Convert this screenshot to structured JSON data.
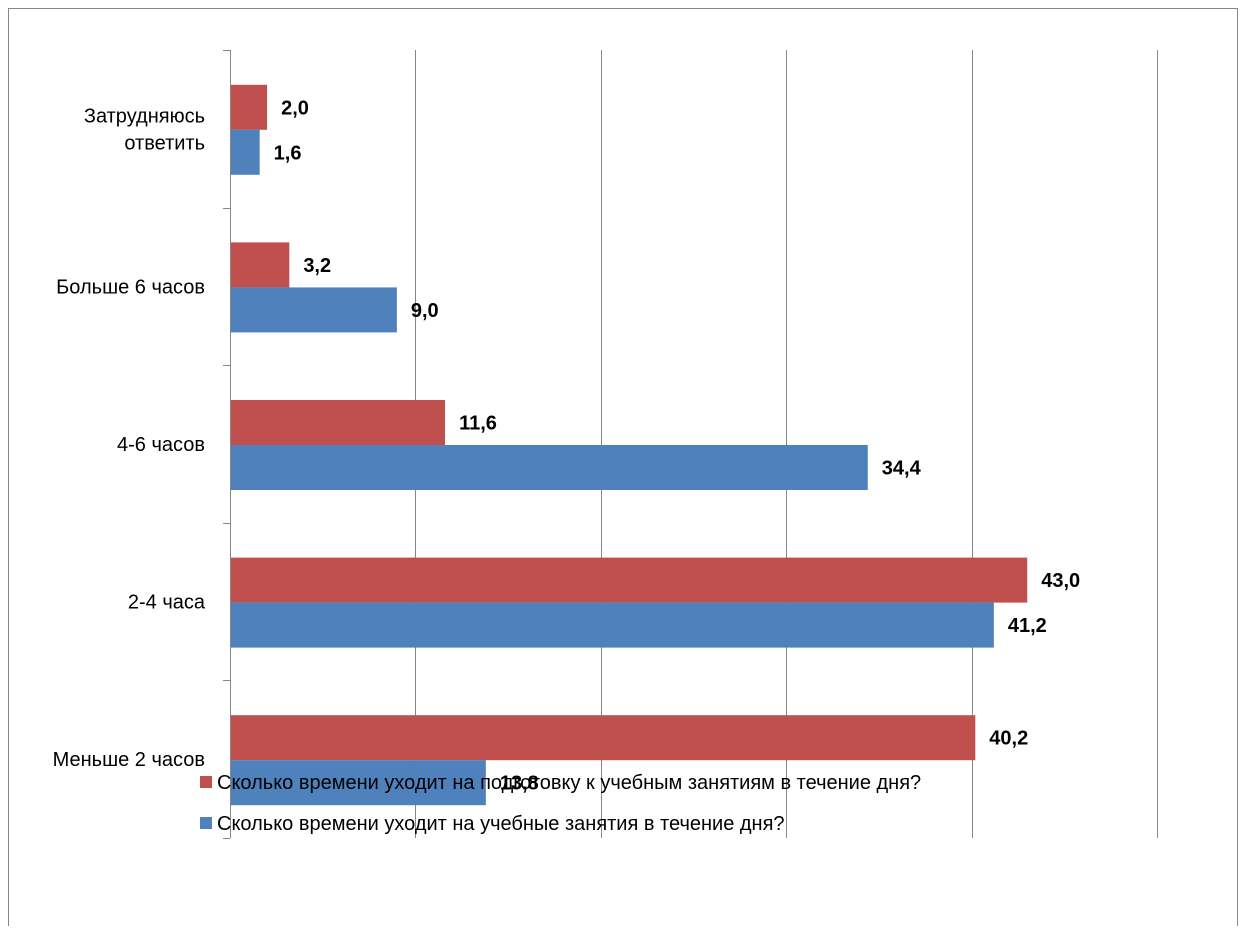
{
  "chart_data": {
    "type": "bar",
    "orientation": "horizontal",
    "categories": [
      "Затрудняюсь ответить",
      "Больше 6 часов",
      "4-6 часов",
      "2-4 часа",
      "Меньше 2 часов"
    ],
    "category_lines": [
      [
        "Затрудняюсь",
        "ответить"
      ],
      [
        "Больше 6 часов"
      ],
      [
        "4-6 часов"
      ],
      [
        "2-4 часа"
      ],
      [
        "Меньше 2 часов"
      ]
    ],
    "series": [
      {
        "name": "Сколько времени уходит на подготовку к учебным занятиям в течение дня?",
        "values": [
          2.0,
          3.2,
          11.6,
          43.0,
          40.2
        ],
        "labels": [
          "2,0",
          "3,2",
          "11,6",
          "43,0",
          "40,2"
        ],
        "color": "#C0504D"
      },
      {
        "name": "Сколько времени уходит на учебные занятия в течение дня?",
        "values": [
          1.6,
          9.0,
          34.4,
          41.2,
          13.8
        ],
        "labels": [
          "1,6",
          "9,0",
          "34,4",
          "41,2",
          "13,8"
        ],
        "color": "#4F81BD"
      }
    ],
    "xlim": [
      0,
      50
    ],
    "grid": "vertical",
    "legend": "bottom",
    "title": "",
    "xlabel": "",
    "ylabel": ""
  }
}
